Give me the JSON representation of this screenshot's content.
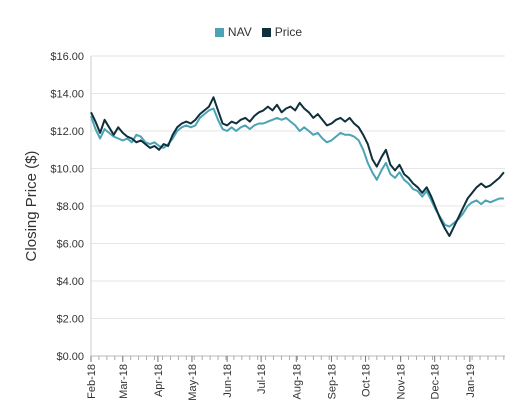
{
  "chart_data": {
    "type": "line",
    "title": "",
    "ylabel": "Closing Price ($)",
    "xlabel": "",
    "ylim": [
      0,
      16
    ],
    "xlim": [
      "2018-02-01",
      "2019-02-01"
    ],
    "y_ticks": [
      0,
      2,
      4,
      6,
      8,
      10,
      12,
      14,
      16
    ],
    "y_tick_labels": [
      "$0.00",
      "$2.00",
      "$4.00",
      "$6.00",
      "$8.00",
      "$10.00",
      "$12.00",
      "$14.00",
      "$16.00"
    ],
    "x_tick_dates": [
      "2018-02-01",
      "2018-03-01",
      "2018-04-01",
      "2018-05-01",
      "2018-06-01",
      "2018-07-01",
      "2018-08-01",
      "2018-09-01",
      "2018-10-01",
      "2018-11-01",
      "2018-12-01",
      "2019-01-01"
    ],
    "x_tick_labels": [
      "Feb-18",
      "Mar-18",
      "Apr-18",
      "May-18",
      "Jun-18",
      "Jul-18",
      "Aug-18",
      "Sep-18",
      "Oct-18",
      "Nov-18",
      "Dec-18",
      "Jan-19"
    ],
    "grid": true,
    "legend_position": "top-center",
    "series": [
      {
        "name": "NAV",
        "color": "#4ba3b3",
        "points": [
          [
            "2018-02-01",
            12.8
          ],
          [
            "2018-02-05",
            12.1
          ],
          [
            "2018-02-09",
            11.6
          ],
          [
            "2018-02-13",
            12.1
          ],
          [
            "2018-02-17",
            11.9
          ],
          [
            "2018-02-21",
            11.7
          ],
          [
            "2018-02-25",
            11.6
          ],
          [
            "2018-03-01",
            11.5
          ],
          [
            "2018-03-05",
            11.6
          ],
          [
            "2018-03-09",
            11.4
          ],
          [
            "2018-03-13",
            11.8
          ],
          [
            "2018-03-17",
            11.7
          ],
          [
            "2018-03-21",
            11.4
          ],
          [
            "2018-03-25",
            11.3
          ],
          [
            "2018-03-29",
            11.4
          ],
          [
            "2018-04-02",
            11.2
          ],
          [
            "2018-04-06",
            11.1
          ],
          [
            "2018-04-10",
            11.3
          ],
          [
            "2018-04-14",
            11.6
          ],
          [
            "2018-04-18",
            12.0
          ],
          [
            "2018-04-22",
            12.2
          ],
          [
            "2018-04-26",
            12.3
          ],
          [
            "2018-04-30",
            12.2
          ],
          [
            "2018-05-04",
            12.3
          ],
          [
            "2018-05-08",
            12.7
          ],
          [
            "2018-05-12",
            12.9
          ],
          [
            "2018-05-16",
            13.1
          ],
          [
            "2018-05-20",
            13.2
          ],
          [
            "2018-05-24",
            12.6
          ],
          [
            "2018-05-28",
            12.1
          ],
          [
            "2018-06-01",
            12.0
          ],
          [
            "2018-06-05",
            12.2
          ],
          [
            "2018-06-09",
            12.0
          ],
          [
            "2018-06-13",
            12.2
          ],
          [
            "2018-06-17",
            12.3
          ],
          [
            "2018-06-21",
            12.1
          ],
          [
            "2018-06-25",
            12.3
          ],
          [
            "2018-06-29",
            12.4
          ],
          [
            "2018-07-03",
            12.4
          ],
          [
            "2018-07-07",
            12.5
          ],
          [
            "2018-07-11",
            12.6
          ],
          [
            "2018-07-15",
            12.7
          ],
          [
            "2018-07-19",
            12.6
          ],
          [
            "2018-07-23",
            12.7
          ],
          [
            "2018-07-27",
            12.5
          ],
          [
            "2018-07-31",
            12.3
          ],
          [
            "2018-08-04",
            12.0
          ],
          [
            "2018-08-08",
            12.2
          ],
          [
            "2018-08-12",
            12.0
          ],
          [
            "2018-08-16",
            11.8
          ],
          [
            "2018-08-20",
            11.9
          ],
          [
            "2018-08-24",
            11.6
          ],
          [
            "2018-08-28",
            11.4
          ],
          [
            "2018-09-01",
            11.5
          ],
          [
            "2018-09-05",
            11.7
          ],
          [
            "2018-09-09",
            11.9
          ],
          [
            "2018-09-13",
            11.8
          ],
          [
            "2018-09-17",
            11.8
          ],
          [
            "2018-09-21",
            11.7
          ],
          [
            "2018-09-25",
            11.5
          ],
          [
            "2018-09-29",
            11.0
          ],
          [
            "2018-10-03",
            10.3
          ],
          [
            "2018-10-07",
            9.8
          ],
          [
            "2018-10-11",
            9.4
          ],
          [
            "2018-10-15",
            9.9
          ],
          [
            "2018-10-19",
            10.3
          ],
          [
            "2018-10-23",
            9.7
          ],
          [
            "2018-10-27",
            9.5
          ],
          [
            "2018-10-31",
            9.8
          ],
          [
            "2018-11-04",
            9.4
          ],
          [
            "2018-11-08",
            9.2
          ],
          [
            "2018-11-12",
            8.9
          ],
          [
            "2018-11-16",
            8.8
          ],
          [
            "2018-11-20",
            8.5
          ],
          [
            "2018-11-24",
            8.8
          ],
          [
            "2018-11-28",
            8.3
          ],
          [
            "2018-12-02",
            7.8
          ],
          [
            "2018-12-06",
            7.4
          ],
          [
            "2018-12-10",
            7.0
          ],
          [
            "2018-12-14",
            6.9
          ],
          [
            "2018-12-18",
            7.1
          ],
          [
            "2018-12-22",
            7.3
          ],
          [
            "2018-12-26",
            7.6
          ],
          [
            "2018-12-30",
            8.0
          ],
          [
            "2019-01-03",
            8.2
          ],
          [
            "2019-01-07",
            8.3
          ],
          [
            "2019-01-11",
            8.1
          ],
          [
            "2019-01-15",
            8.3
          ],
          [
            "2019-01-19",
            8.2
          ],
          [
            "2019-01-23",
            8.3
          ],
          [
            "2019-01-27",
            8.4
          ],
          [
            "2019-01-31",
            8.4
          ]
        ]
      },
      {
        "name": "Price",
        "color": "#0f2f3b",
        "points": [
          [
            "2018-02-01",
            13.0
          ],
          [
            "2018-02-05",
            12.5
          ],
          [
            "2018-02-09",
            11.9
          ],
          [
            "2018-02-13",
            12.6
          ],
          [
            "2018-02-17",
            12.2
          ],
          [
            "2018-02-21",
            11.8
          ],
          [
            "2018-02-25",
            12.2
          ],
          [
            "2018-03-01",
            11.9
          ],
          [
            "2018-03-05",
            11.7
          ],
          [
            "2018-03-09",
            11.6
          ],
          [
            "2018-03-13",
            11.4
          ],
          [
            "2018-03-17",
            11.5
          ],
          [
            "2018-03-21",
            11.3
          ],
          [
            "2018-03-25",
            11.1
          ],
          [
            "2018-03-29",
            11.2
          ],
          [
            "2018-04-02",
            11.0
          ],
          [
            "2018-04-06",
            11.3
          ],
          [
            "2018-04-10",
            11.2
          ],
          [
            "2018-04-14",
            11.8
          ],
          [
            "2018-04-18",
            12.2
          ],
          [
            "2018-04-22",
            12.4
          ],
          [
            "2018-04-26",
            12.5
          ],
          [
            "2018-04-30",
            12.4
          ],
          [
            "2018-05-04",
            12.6
          ],
          [
            "2018-05-08",
            12.9
          ],
          [
            "2018-05-12",
            13.1
          ],
          [
            "2018-05-16",
            13.3
          ],
          [
            "2018-05-20",
            13.8
          ],
          [
            "2018-05-24",
            13.1
          ],
          [
            "2018-05-28",
            12.4
          ],
          [
            "2018-06-01",
            12.3
          ],
          [
            "2018-06-05",
            12.5
          ],
          [
            "2018-06-09",
            12.4
          ],
          [
            "2018-06-13",
            12.6
          ],
          [
            "2018-06-17",
            12.7
          ],
          [
            "2018-06-21",
            12.5
          ],
          [
            "2018-06-25",
            12.8
          ],
          [
            "2018-06-29",
            13.0
          ],
          [
            "2018-07-03",
            13.1
          ],
          [
            "2018-07-07",
            13.3
          ],
          [
            "2018-07-11",
            13.1
          ],
          [
            "2018-07-15",
            13.4
          ],
          [
            "2018-07-19",
            13.0
          ],
          [
            "2018-07-23",
            13.2
          ],
          [
            "2018-07-27",
            13.3
          ],
          [
            "2018-07-31",
            13.1
          ],
          [
            "2018-08-04",
            13.5
          ],
          [
            "2018-08-08",
            13.2
          ],
          [
            "2018-08-12",
            13.0
          ],
          [
            "2018-08-16",
            12.7
          ],
          [
            "2018-08-20",
            12.9
          ],
          [
            "2018-08-24",
            12.6
          ],
          [
            "2018-08-28",
            12.3
          ],
          [
            "2018-09-01",
            12.4
          ],
          [
            "2018-09-05",
            12.6
          ],
          [
            "2018-09-09",
            12.7
          ],
          [
            "2018-09-13",
            12.5
          ],
          [
            "2018-09-17",
            12.7
          ],
          [
            "2018-09-21",
            12.4
          ],
          [
            "2018-09-25",
            12.2
          ],
          [
            "2018-09-29",
            11.8
          ],
          [
            "2018-10-03",
            11.3
          ],
          [
            "2018-10-07",
            10.5
          ],
          [
            "2018-10-11",
            10.1
          ],
          [
            "2018-10-15",
            10.6
          ],
          [
            "2018-10-19",
            11.0
          ],
          [
            "2018-10-23",
            10.2
          ],
          [
            "2018-10-27",
            9.9
          ],
          [
            "2018-10-31",
            10.2
          ],
          [
            "2018-11-04",
            9.7
          ],
          [
            "2018-11-08",
            9.5
          ],
          [
            "2018-11-12",
            9.2
          ],
          [
            "2018-11-16",
            9.0
          ],
          [
            "2018-11-20",
            8.7
          ],
          [
            "2018-11-24",
            9.0
          ],
          [
            "2018-11-28",
            8.5
          ],
          [
            "2018-12-02",
            7.9
          ],
          [
            "2018-12-06",
            7.3
          ],
          [
            "2018-12-10",
            6.8
          ],
          [
            "2018-12-14",
            6.4
          ],
          [
            "2018-12-18",
            6.9
          ],
          [
            "2018-12-22",
            7.4
          ],
          [
            "2018-12-26",
            7.9
          ],
          [
            "2018-12-30",
            8.4
          ],
          [
            "2019-01-03",
            8.7
          ],
          [
            "2019-01-07",
            9.0
          ],
          [
            "2019-01-11",
            9.2
          ],
          [
            "2019-01-15",
            9.0
          ],
          [
            "2019-01-19",
            9.1
          ],
          [
            "2019-01-23",
            9.3
          ],
          [
            "2019-01-27",
            9.5
          ],
          [
            "2019-01-31",
            9.8
          ]
        ]
      }
    ]
  }
}
